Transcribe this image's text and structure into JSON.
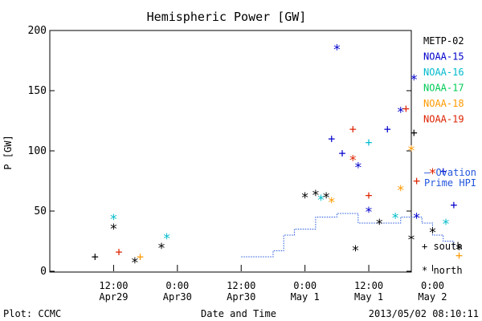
{
  "chart_data": {
    "type": "scatter",
    "title": "Hemispheric Power [GW]",
    "ylabel": "P [GW]",
    "xlabel": "Date and Time",
    "ylim": [
      0,
      200
    ],
    "xlim_hours": [
      0,
      68
    ],
    "y_ticks": [
      "0",
      "50",
      "100",
      "150",
      "200"
    ],
    "x_ticks": [
      {
        "time": "2013-04-29 12:00",
        "line1": "12:00",
        "line2": "Apr29"
      },
      {
        "time": "2013-04-30 00:00",
        "line1": "0:00",
        "line2": "Apr30"
      },
      {
        "time": "2013-04-30 12:00",
        "line1": "12:00",
        "line2": "Apr30"
      },
      {
        "time": "2013-05-01 00:00",
        "line1": "0:00",
        "line2": "May 1"
      },
      {
        "time": "2013-05-01 12:00",
        "line1": "12:00",
        "line2": "May 1"
      },
      {
        "time": "2013-05-02 00:00",
        "line1": "0:00",
        "line2": "May 2"
      }
    ],
    "legend_placement": "right",
    "series": [
      {
        "name": "METP-02",
        "color": "#000000",
        "points": [
          {
            "t": "2013-04-29 08:30",
            "v": 12,
            "h": "south"
          },
          {
            "t": "2013-04-29 12:00",
            "v": 36,
            "h": "north"
          },
          {
            "t": "2013-04-29 16:00",
            "v": 8,
            "h": "north"
          },
          {
            "t": "2013-04-29 21:00",
            "v": 20,
            "h": "north"
          },
          {
            "t": "2013-05-01 00:00",
            "v": 62,
            "h": "north"
          },
          {
            "t": "2013-05-01 02:00",
            "v": 64,
            "h": "north"
          },
          {
            "t": "2013-05-01 04:00",
            "v": 62,
            "h": "north"
          },
          {
            "t": "2013-05-01 09:30",
            "v": 18,
            "h": "north"
          },
          {
            "t": "2013-05-01 14:00",
            "v": 40,
            "h": "north"
          },
          {
            "t": "2013-05-01 20:00",
            "v": 27,
            "h": "north"
          },
          {
            "t": "2013-05-01 20:30",
            "v": 115,
            "h": "south"
          },
          {
            "t": "2013-05-02 00:00",
            "v": 33,
            "h": "north"
          },
          {
            "t": "2013-05-02 05:00",
            "v": 19,
            "h": "north"
          }
        ]
      },
      {
        "name": "NOAA-15",
        "color": "#0000cc",
        "points": [
          {
            "t": "2013-05-01 05:00",
            "v": 110,
            "h": "south"
          },
          {
            "t": "2013-05-01 06:00",
            "v": 185,
            "h": "north"
          },
          {
            "t": "2013-05-01 07:00",
            "v": 98,
            "h": "south"
          },
          {
            "t": "2013-05-01 10:00",
            "v": 87,
            "h": "north"
          },
          {
            "t": "2013-05-01 12:00",
            "v": 50,
            "h": "north"
          },
          {
            "t": "2013-05-01 15:30",
            "v": 118,
            "h": "south"
          },
          {
            "t": "2013-05-01 18:00",
            "v": 133,
            "h": "north"
          },
          {
            "t": "2013-05-01 20:30",
            "v": 160,
            "h": "north"
          },
          {
            "t": "2013-05-01 21:00",
            "v": 45,
            "h": "north"
          },
          {
            "t": "2013-05-02 02:00",
            "v": 83,
            "h": "south"
          },
          {
            "t": "2013-05-02 04:00",
            "v": 55,
            "h": "south"
          }
        ]
      },
      {
        "name": "NOAA-16",
        "color": "#00bbcc",
        "points": [
          {
            "t": "2013-04-29 12:00",
            "v": 44,
            "h": "north"
          },
          {
            "t": "2013-04-29 22:00",
            "v": 28,
            "h": "north"
          },
          {
            "t": "2013-05-01 03:00",
            "v": 60,
            "h": "north"
          },
          {
            "t": "2013-05-01 12:00",
            "v": 107,
            "h": "south"
          },
          {
            "t": "2013-05-01 17:00",
            "v": 45,
            "h": "north"
          },
          {
            "t": "2013-05-02 02:30",
            "v": 40,
            "h": "north"
          }
        ]
      },
      {
        "name": "NOAA-17",
        "color": "#00cc55",
        "points": []
      },
      {
        "name": "NOAA-18",
        "color": "#ff9900",
        "points": [
          {
            "t": "2013-04-29 17:00",
            "v": 12,
            "h": "south"
          },
          {
            "t": "2013-05-01 05:00",
            "v": 58,
            "h": "north"
          },
          {
            "t": "2013-05-01 18:00",
            "v": 68,
            "h": "north"
          },
          {
            "t": "2013-05-01 20:00",
            "v": 101,
            "h": "north"
          },
          {
            "t": "2013-05-02 05:00",
            "v": 13,
            "h": "south"
          }
        ]
      },
      {
        "name": "NOAA-19",
        "color": "#dd2200",
        "points": [
          {
            "t": "2013-04-29 13:00",
            "v": 16,
            "h": "south"
          },
          {
            "t": "2013-05-01 09:00",
            "v": 118,
            "h": "south"
          },
          {
            "t": "2013-05-01 09:00",
            "v": 93,
            "h": "north"
          },
          {
            "t": "2013-05-01 12:00",
            "v": 63,
            "h": "south"
          },
          {
            "t": "2013-05-01 19:00",
            "v": 135,
            "h": "south"
          },
          {
            "t": "2013-05-01 21:00",
            "v": 75,
            "h": "south"
          },
          {
            "t": "2013-05-02 00:00",
            "v": 82,
            "h": "north"
          }
        ]
      }
    ],
    "ovation_line": {
      "name": "Ovation Prime HPI",
      "color": "#2255dd",
      "points": [
        {
          "t": "2013-04-30 12:00",
          "v": 12
        },
        {
          "t": "2013-04-30 18:00",
          "v": 17
        },
        {
          "t": "2013-04-30 20:00",
          "v": 30
        },
        {
          "t": "2013-04-30 22:00",
          "v": 35
        },
        {
          "t": "2013-05-01 02:00",
          "v": 45
        },
        {
          "t": "2013-05-01 06:00",
          "v": 48
        },
        {
          "t": "2013-05-01 10:00",
          "v": 40
        },
        {
          "t": "2013-05-01 14:00",
          "v": 40
        },
        {
          "t": "2013-05-01 18:00",
          "v": 45
        },
        {
          "t": "2013-05-01 22:00",
          "v": 40
        },
        {
          "t": "2013-05-02 00:00",
          "v": 30
        },
        {
          "t": "2013-05-02 02:00",
          "v": 25
        },
        {
          "t": "2013-05-02 04:00",
          "v": 20
        }
      ]
    },
    "marker_legend": [
      {
        "symbol": "+",
        "label": "south"
      },
      {
        "symbol": "*",
        "label": "north"
      }
    ],
    "ovation_legend": {
      "line1": "– Ovation",
      "line2": "Prime HPI"
    },
    "footer_left": "Plot: CCMC",
    "footer_right": "2013/05/02 08:10:11"
  }
}
